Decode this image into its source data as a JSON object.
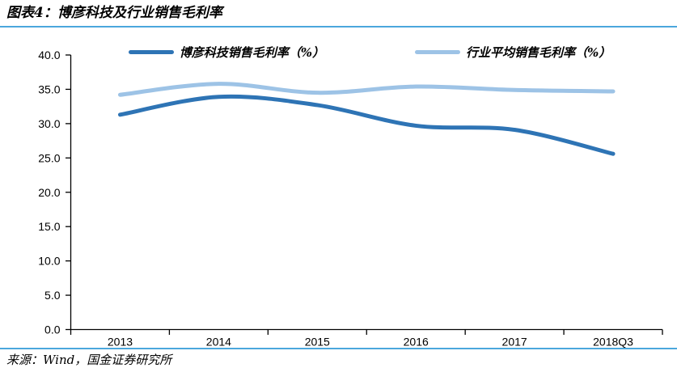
{
  "header": {
    "title": "图表4：博彦科技及行业销售毛利率"
  },
  "footer": {
    "source": "来源：Wind，国金证券研究所"
  },
  "colors": {
    "accent_rule": "#4BA7DD",
    "axis": "#000000",
    "company_series": "#2E74B5",
    "industry_series": "#9DC3E6"
  },
  "chart_data": {
    "type": "line",
    "line_style": "smooth",
    "title": "图表4：博彦科技及行业销售毛利率",
    "categories": [
      "2013",
      "2014",
      "2015",
      "2016",
      "2017",
      "2018Q3"
    ],
    "series": [
      {
        "name": "博彦科技销售毛利率（%）",
        "color": "#2E74B5",
        "values": [
          31.3,
          33.9,
          32.7,
          29.7,
          29.1,
          25.6
        ]
      },
      {
        "name": "行业平均销售毛利率（%）",
        "color": "#9DC3E6",
        "values": [
          34.2,
          35.8,
          34.5,
          35.4,
          34.9,
          34.7
        ]
      }
    ],
    "xlabel": "",
    "ylabel": "",
    "ylim": [
      0,
      40
    ],
    "ytick_step": 5,
    "ytick_labels": [
      "0.0",
      "5.0",
      "10.0",
      "15.0",
      "20.0",
      "25.0",
      "30.0",
      "35.0",
      "40.0"
    ],
    "grid": false,
    "legend_position": "top"
  }
}
